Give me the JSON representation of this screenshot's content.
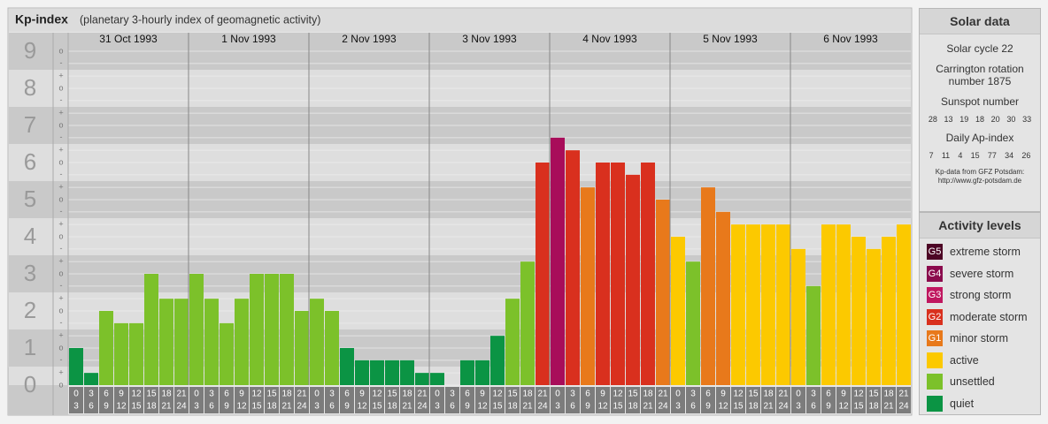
{
  "chart_data": {
    "type": "bar",
    "title": "Kp-index",
    "subtitle": "(planetary 3-hourly index of geomagnetic activity)",
    "ylim": [
      0,
      9.5
    ],
    "yticks": [
      0,
      1,
      2,
      3,
      4,
      5,
      6,
      7,
      8,
      9
    ],
    "minor_yticks": [
      {
        "value": 0,
        "label": "o"
      },
      {
        "value": 0.33,
        "label": "+"
      },
      {
        "value": 0.67,
        "label": "-"
      },
      {
        "value": 1,
        "label": "o"
      },
      {
        "value": 1.33,
        "label": "+"
      },
      {
        "value": 1.67,
        "label": "-"
      },
      {
        "value": 2,
        "label": "o"
      },
      {
        "value": 2.33,
        "label": "+"
      },
      {
        "value": 2.67,
        "label": "-"
      },
      {
        "value": 3,
        "label": "o"
      },
      {
        "value": 3.33,
        "label": "+"
      },
      {
        "value": 3.67,
        "label": "-"
      },
      {
        "value": 4,
        "label": "o"
      },
      {
        "value": 4.33,
        "label": "+"
      },
      {
        "value": 4.67,
        "label": "-"
      },
      {
        "value": 5,
        "label": "o"
      },
      {
        "value": 5.33,
        "label": "+"
      },
      {
        "value": 5.67,
        "label": "-"
      },
      {
        "value": 6,
        "label": "o"
      },
      {
        "value": 6.33,
        "label": "+"
      },
      {
        "value": 6.67,
        "label": "-"
      },
      {
        "value": 7,
        "label": "o"
      },
      {
        "value": 7.33,
        "label": "+"
      },
      {
        "value": 7.67,
        "label": "-"
      },
      {
        "value": 8,
        "label": "o"
      },
      {
        "value": 8.33,
        "label": "+"
      },
      {
        "value": 8.67,
        "label": "-"
      },
      {
        "value": 9,
        "label": "o"
      }
    ],
    "hour_slots": [
      [
        0,
        3
      ],
      [
        3,
        6
      ],
      [
        6,
        9
      ],
      [
        9,
        12
      ],
      [
        12,
        15
      ],
      [
        15,
        18
      ],
      [
        18,
        21
      ],
      [
        21,
        24
      ]
    ],
    "days": [
      {
        "date": "31 Oct 1993",
        "values": [
          1,
          0.33,
          2,
          1.67,
          1.67,
          3,
          2.33,
          2.33
        ],
        "colors": [
          "#0b9444",
          "#0b9444",
          "#7cc12a",
          "#7cc12a",
          "#7cc12a",
          "#7cc12a",
          "#7cc12a",
          "#7cc12a"
        ]
      },
      {
        "date": "1 Nov 1993",
        "values": [
          3,
          2.33,
          1.67,
          2.33,
          3,
          3,
          3,
          2
        ],
        "colors": [
          "#7cc12a",
          "#7cc12a",
          "#7cc12a",
          "#7cc12a",
          "#7cc12a",
          "#7cc12a",
          "#7cc12a",
          "#7cc12a"
        ]
      },
      {
        "date": "2 Nov 1993",
        "values": [
          2.33,
          2,
          1,
          0.67,
          0.67,
          0.67,
          0.67,
          0.33
        ],
        "colors": [
          "#7cc12a",
          "#7cc12a",
          "#0b9444",
          "#0b9444",
          "#0b9444",
          "#0b9444",
          "#0b9444",
          "#0b9444"
        ]
      },
      {
        "date": "3 Nov 1993",
        "values": [
          0.33,
          0,
          0.67,
          0.67,
          1.33,
          2.33,
          3.33,
          6
        ],
        "colors": [
          "#0b9444",
          "#0b9444",
          "#0b9444",
          "#0b9444",
          "#0b9444",
          "#7cc12a",
          "#7cc12a",
          "#d9301e"
        ]
      },
      {
        "date": "4 Nov 1993",
        "values": [
          6.67,
          6.33,
          5.33,
          6,
          6,
          5.67,
          6,
          5
        ],
        "colors": [
          "#a80d5a",
          "#d9301e",
          "#e8791b",
          "#d9301e",
          "#d9301e",
          "#d9301e",
          "#d9301e",
          "#e8791b"
        ]
      },
      {
        "date": "5 Nov 1993",
        "values": [
          4,
          3.33,
          5.33,
          4.67,
          4.33,
          4.33,
          4.33,
          4.33
        ],
        "colors": [
          "#fcc900",
          "#7cc12a",
          "#e8791b",
          "#e8791b",
          "#fcc900",
          "#fcc900",
          "#fcc900",
          "#fcc900"
        ]
      },
      {
        "date": "6 Nov 1993",
        "values": [
          3.67,
          2.67,
          4.33,
          4.33,
          4,
          3.67,
          4,
          4.33
        ],
        "colors": [
          "#fcc900",
          "#7cc12a",
          "#fcc900",
          "#fcc900",
          "#fcc900",
          "#fcc900",
          "#fcc900",
          "#fcc900"
        ]
      }
    ]
  },
  "solar_data": {
    "title": "Solar data",
    "cycle": "Solar cycle 22",
    "carrington": "Carrington rotation number 1875",
    "sunspot_title": "Sunspot number",
    "sunspot": [
      28,
      13,
      19,
      18,
      20,
      30,
      33
    ],
    "ap_title": "Daily Ap-index",
    "ap": [
      7,
      11,
      4,
      15,
      77,
      34,
      26
    ],
    "source": "Kp-data from GFZ Potsdam:",
    "url": "http://www.gfz-potsdam.de"
  },
  "activity_levels": {
    "title": "Activity levels",
    "items": [
      {
        "code": "G5",
        "name": "extreme storm",
        "color": "#4d0525"
      },
      {
        "code": "G4",
        "name": "severe storm",
        "color": "#8b0b4d"
      },
      {
        "code": "G3",
        "name": "strong storm",
        "color": "#c0175f"
      },
      {
        "code": "G2",
        "name": "moderate storm",
        "color": "#d9301e"
      },
      {
        "code": "G1",
        "name": "minor storm",
        "color": "#e8791b"
      },
      {
        "name": "active",
        "color": "#fcc900"
      },
      {
        "name": "unsettled",
        "color": "#7cc12a"
      },
      {
        "name": "quiet",
        "color": "#0b9444"
      }
    ]
  }
}
